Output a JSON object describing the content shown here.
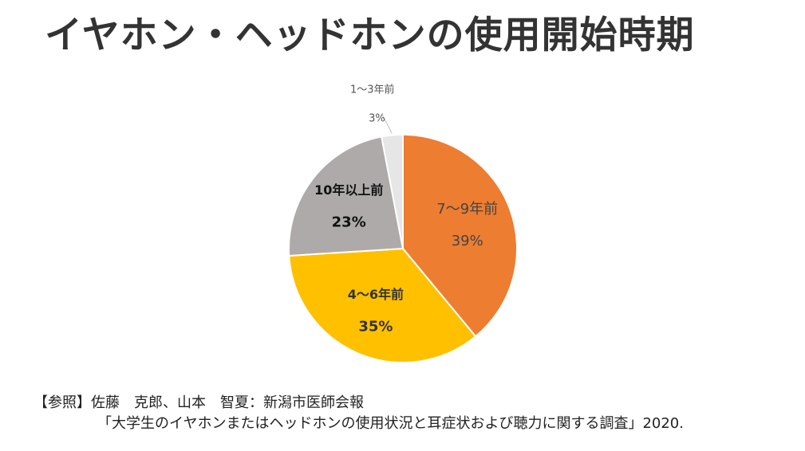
{
  "title": "イヤホン・ヘッドホンの使用開始時期",
  "chart_data": {
    "type": "pie",
    "title": "イヤホン・ヘッドホンの使用開始時期",
    "start_angle": "12 o'clock",
    "direction": "clockwise",
    "legend": "none",
    "slices": [
      {
        "label": "7～9年前",
        "value": 39,
        "value_label": "39%",
        "color": "#ED7D31",
        "label_color": "#444444",
        "label_bold": false
      },
      {
        "label": "4～6年前",
        "value": 35,
        "value_label": "35%",
        "color": "#FFC000",
        "label_color": "#333333",
        "label_bold": true
      },
      {
        "label": "10年以上前",
        "value": 23,
        "value_label": "23%",
        "color": "#AEAAAA",
        "label_color": "#111111",
        "label_bold": true
      },
      {
        "label": "1～3年前",
        "value": 3,
        "value_label": "3%",
        "color": "#E7E6E6",
        "label_color": "#555555",
        "label_bold": false
      }
    ]
  },
  "reference": {
    "line1": "【参照】佐藤　克郎、山本　智夏：新潟市医師会報",
    "line2": "「大学生のイヤホンまたはヘッドホンの使用状況と耳症状および聴力に関する調査」2020."
  }
}
